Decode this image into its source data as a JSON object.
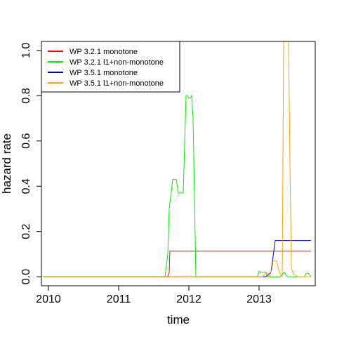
{
  "chart_data": {
    "type": "line",
    "xlabel": "time",
    "ylabel": "hazard rate",
    "xlim": [
      2009.9,
      2013.8
    ],
    "ylim": [
      -0.04,
      1.04
    ],
    "x_ticks": [
      2010,
      2011,
      2012,
      2013
    ],
    "x_tick_labels": [
      "2010",
      "2011",
      "2012",
      "2013"
    ],
    "y_ticks": [
      0.0,
      0.2,
      0.4,
      0.6,
      0.8,
      1.0
    ],
    "y_tick_labels": [
      "0.0",
      "0.2",
      "0.4",
      "0.6",
      "0.8",
      "1.0"
    ],
    "legend_position": "top-left",
    "series": [
      {
        "name": "WP 3.2.1 monotone",
        "color": "#ff0000",
        "x": [
          2009.92,
          2011.7,
          2011.72,
          2011.73,
          2013.74
        ],
        "y": [
          0.0,
          0.0,
          0.02,
          0.113,
          0.113
        ]
      },
      {
        "name": "WP 3.2.1 l1+non-monotone",
        "color": "#00ee00",
        "x": [
          2009.92,
          2011.66,
          2011.7,
          2011.72,
          2011.77,
          2011.82,
          2011.85,
          2011.9,
          2011.92,
          2011.96,
          2011.98,
          2012.0,
          2012.02,
          2012.04,
          2012.06,
          2012.1,
          2012.14,
          2012.18,
          2012.5,
          2012.8,
          2012.9,
          2012.98,
          2013.0,
          2013.02,
          2013.1,
          2013.12,
          2013.15,
          2013.2,
          2013.3,
          2013.36,
          2013.4,
          2013.5,
          2013.6,
          2013.65,
          2013.67,
          2013.7,
          2013.74
        ],
        "y": [
          0.0,
          0.0,
          0.1,
          0.3,
          0.43,
          0.43,
          0.37,
          0.37,
          0.37,
          0.8,
          0.8,
          0.79,
          0.79,
          0.8,
          0.7,
          0.0,
          0.0,
          0.0,
          0.0,
          0.0,
          0.0,
          0.0,
          0.025,
          0.02,
          0.02,
          0.0,
          0.0,
          0.0,
          0.0,
          0.02,
          0.0,
          0.0,
          0.0,
          0.0,
          0.015,
          0.015,
          0.0
        ]
      },
      {
        "name": "WP 3.5.1 monotone",
        "color": "#0000dd",
        "x": [
          2009.92,
          2013.1,
          2013.17,
          2013.2,
          2013.23,
          2013.74
        ],
        "y": [
          0.0,
          0.0,
          0.02,
          0.09,
          0.16,
          0.16
        ]
      },
      {
        "name": "WP 3.5.1 l1+non-monotone",
        "color": "#ffa500",
        "x": [
          2009.92,
          2012.97,
          2013.05,
          2013.1,
          2013.15,
          2013.18,
          2013.2,
          2013.25,
          2013.29,
          2013.33,
          2013.34,
          2013.35,
          2013.37,
          2013.4,
          2013.42,
          2013.44,
          2013.46,
          2013.48,
          2013.5,
          2013.55,
          2013.6,
          2013.74
        ],
        "y": [
          0.0,
          0.0,
          0.0,
          0.02,
          0.0,
          0.03,
          0.07,
          0.07,
          0.02,
          0.0,
          0.5,
          1.04,
          1.04,
          1.04,
          1.04,
          0.5,
          0.04,
          0.02,
          0.01,
          0.0,
          0.0,
          0.0
        ]
      }
    ]
  }
}
